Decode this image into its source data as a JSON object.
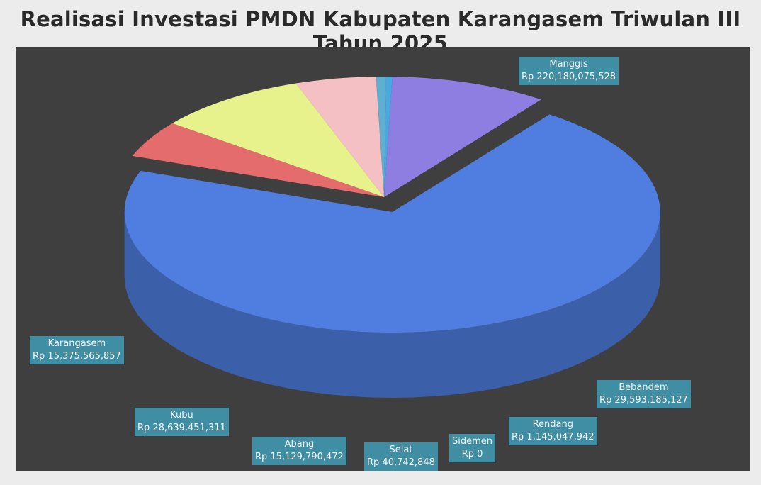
{
  "title": "Realisasi Investasi PMDN Kabupaten Karangasem Triwulan III Tahun 2025",
  "chart_data": {
    "type": "pie",
    "title": "Realisasi Investasi PMDN Kabupaten Karangasem Triwulan III Tahun 2025",
    "slices": [
      {
        "name": "Manggis",
        "value": 220180075528,
        "label": "Rp 220,180,075,528",
        "color": "#4f7ee0",
        "side": "#3b5fa8"
      },
      {
        "name": "Bebandem",
        "value": 29593185127,
        "label": "Rp 29,593,185,127",
        "color": "#8f7ee2",
        "side": "#6b5ea9"
      },
      {
        "name": "Rendang",
        "value": 1145047942,
        "label": "Rp 1,145,047,942",
        "color": "#48a8e0",
        "side": "#3680a8"
      },
      {
        "name": "Sidemen",
        "value": 0,
        "label": "Rp  0",
        "color": "#5fb0d0",
        "side": "#4a889f"
      },
      {
        "name": "Selat",
        "value": 40742848,
        "label": "Rp 40,742,848",
        "color": "#f2aab2",
        "side": "#b77f86"
      },
      {
        "name": "Abang",
        "value": 15129790472,
        "label": "Rp 15,129,790,472",
        "color": "#f4c0c4",
        "side": "#b38d90"
      },
      {
        "name": "Kubu",
        "value": 28639451311,
        "label": "Rp 28,639,451,311",
        "color": "#e7f28c",
        "side": "#acb468"
      },
      {
        "name": "Karangasem",
        "value": 15375565857,
        "label": "Rp 15,375,565,857",
        "color": "#e46c6c",
        "side": "#a85050"
      }
    ]
  }
}
